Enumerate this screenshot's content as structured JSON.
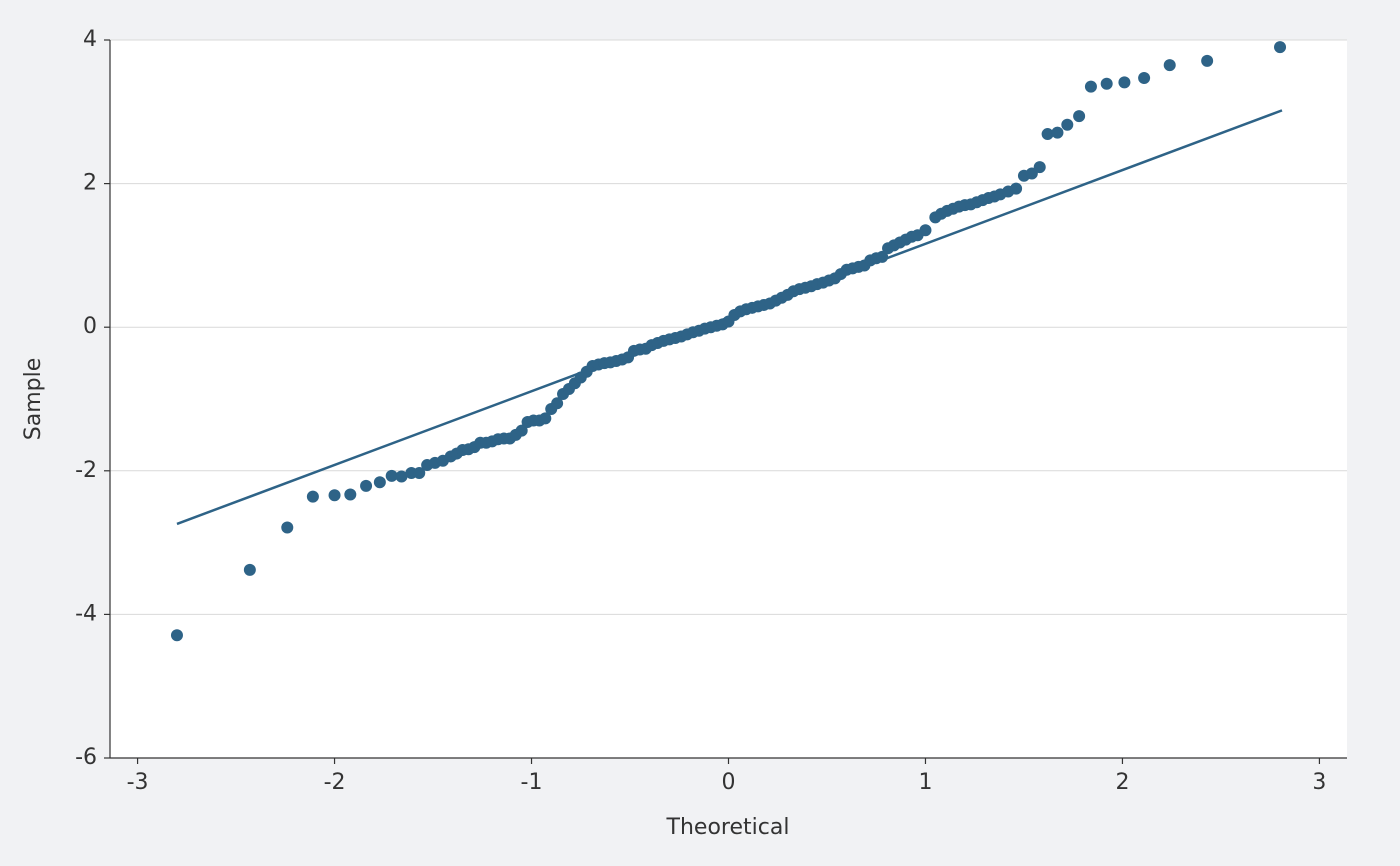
{
  "chart_data": {
    "type": "scatter",
    "x_label": "Theoretical",
    "y_label": "Sample",
    "color": "#2e6387",
    "xlim": [
      -3.14,
      3.14
    ],
    "ylim": [
      -6,
      4
    ],
    "xticks": [
      -3,
      -2,
      -1,
      0,
      1,
      2,
      3
    ],
    "yticks": [
      -6,
      -4,
      -2,
      0,
      2,
      4
    ],
    "grid": true,
    "x": [
      -2.8,
      -2.43,
      -2.24,
      -2.11,
      -2.0,
      -1.92,
      -1.84,
      -1.77,
      -1.71,
      -1.66,
      -1.61,
      -1.57,
      -1.53,
      -1.49,
      -1.45,
      -1.41,
      -1.38,
      -1.35,
      -1.32,
      -1.29,
      -1.26,
      -1.23,
      -1.2,
      -1.17,
      -1.14,
      -1.11,
      -1.08,
      -1.05,
      -1.02,
      -0.99,
      -0.96,
      -0.93,
      -0.9,
      -0.87,
      -0.84,
      -0.81,
      -0.78,
      -0.75,
      -0.72,
      -0.69,
      -0.66,
      -0.63,
      -0.6,
      -0.57,
      -0.54,
      -0.51,
      -0.48,
      -0.45,
      -0.42,
      -0.39,
      -0.36,
      -0.33,
      -0.3,
      -0.27,
      -0.24,
      -0.21,
      -0.18,
      -0.15,
      -0.12,
      -0.09,
      -0.06,
      -0.03,
      0.0,
      0.03,
      0.06,
      0.09,
      0.12,
      0.15,
      0.18,
      0.21,
      0.24,
      0.27,
      0.3,
      0.33,
      0.36,
      0.39,
      0.42,
      0.45,
      0.48,
      0.51,
      0.54,
      0.57,
      0.6,
      0.63,
      0.66,
      0.69,
      0.72,
      0.75,
      0.78,
      0.81,
      0.84,
      0.87,
      0.9,
      0.93,
      0.96,
      1.0,
      1.05,
      1.08,
      1.11,
      1.14,
      1.17,
      1.2,
      1.23,
      1.26,
      1.29,
      1.32,
      1.35,
      1.38,
      1.42,
      1.46,
      1.5,
      1.54,
      1.58,
      1.62,
      1.67,
      1.72,
      1.78,
      1.84,
      1.92,
      2.01,
      2.11,
      2.24,
      2.43,
      2.8
    ],
    "values": [
      -4.29,
      -3.38,
      -2.79,
      -2.36,
      -2.34,
      -2.33,
      -2.21,
      -2.16,
      -2.07,
      -2.08,
      -2.03,
      -2.03,
      -1.92,
      -1.89,
      -1.86,
      -1.8,
      -1.76,
      -1.71,
      -1.7,
      -1.67,
      -1.61,
      -1.61,
      -1.59,
      -1.56,
      -1.55,
      -1.55,
      -1.5,
      -1.44,
      -1.32,
      -1.3,
      -1.3,
      -1.27,
      -1.14,
      -1.06,
      -0.93,
      -0.86,
      -0.78,
      -0.7,
      -0.62,
      -0.54,
      -0.52,
      -0.5,
      -0.49,
      -0.47,
      -0.45,
      -0.42,
      -0.33,
      -0.31,
      -0.3,
      -0.25,
      -0.22,
      -0.19,
      -0.17,
      -0.15,
      -0.13,
      -0.1,
      -0.07,
      -0.05,
      -0.02,
      0.0,
      0.02,
      0.04,
      0.08,
      0.17,
      0.22,
      0.25,
      0.27,
      0.29,
      0.31,
      0.33,
      0.37,
      0.41,
      0.45,
      0.5,
      0.53,
      0.55,
      0.57,
      0.6,
      0.62,
      0.65,
      0.68,
      0.74,
      0.8,
      0.82,
      0.84,
      0.86,
      0.93,
      0.96,
      0.98,
      1.1,
      1.14,
      1.18,
      1.22,
      1.26,
      1.28,
      1.35,
      1.53,
      1.58,
      1.62,
      1.65,
      1.68,
      1.7,
      1.71,
      1.74,
      1.77,
      1.8,
      1.82,
      1.85,
      1.89,
      1.93,
      2.11,
      2.14,
      2.23,
      2.69,
      2.71,
      2.82,
      2.94,
      3.35,
      3.39,
      3.41,
      3.47,
      3.65,
      3.71,
      3.9
    ],
    "reference_line": {
      "x": [
        -2.8,
        2.81
      ],
      "values": [
        -2.74,
        3.02
      ]
    }
  }
}
